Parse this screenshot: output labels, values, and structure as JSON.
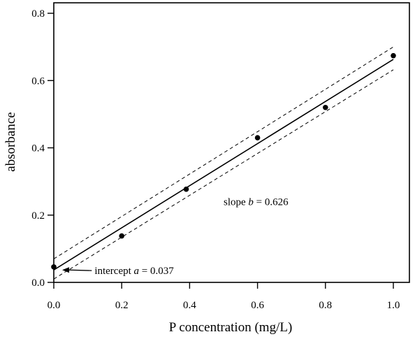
{
  "chart_data": {
    "type": "scatter",
    "xlabel": "P concentration (mg/L)",
    "ylabel": "absorbance",
    "xlim": [
      0.0,
      1.0
    ],
    "ylim": [
      0.0,
      0.8
    ],
    "x_ticks": [
      0.0,
      0.2,
      0.4,
      0.6,
      0.8,
      1.0
    ],
    "x_tick_labels": [
      "0.0",
      "0.2",
      "0.4",
      "0.6",
      "0.8",
      "1.0"
    ],
    "y_ticks": [
      0.0,
      0.2,
      0.4,
      0.6,
      0.8
    ],
    "y_tick_labels": [
      "0.0",
      "0.2",
      "0.4",
      "0.6",
      "0.8"
    ],
    "grid": false,
    "points": [
      {
        "x": 0.0,
        "y": 0.046
      },
      {
        "x": 0.2,
        "y": 0.138
      },
      {
        "x": 0.39,
        "y": 0.277
      },
      {
        "x": 0.6,
        "y": 0.43
      },
      {
        "x": 0.8,
        "y": 0.52
      },
      {
        "x": 1.0,
        "y": 0.674
      }
    ],
    "fit_line": {
      "intercept": 0.037,
      "slope": 0.626
    },
    "confidence_band": {
      "upper": [
        [
          0.0,
          0.07
        ],
        [
          1.0,
          0.7
        ]
      ],
      "lower": [
        [
          0.0,
          0.01
        ],
        [
          1.0,
          0.632
        ]
      ]
    },
    "annotations": {
      "slope": {
        "prefix": "slope ",
        "var": "b",
        "suffix": " = 0.626",
        "x": 0.5,
        "y": 0.24
      },
      "intercept": {
        "prefix": "intercept ",
        "var": "a",
        "suffix": " = 0.037",
        "x": 0.12,
        "y": 0.035
      }
    },
    "colors": {
      "marker": "#000000",
      "line": "#000000"
    }
  }
}
